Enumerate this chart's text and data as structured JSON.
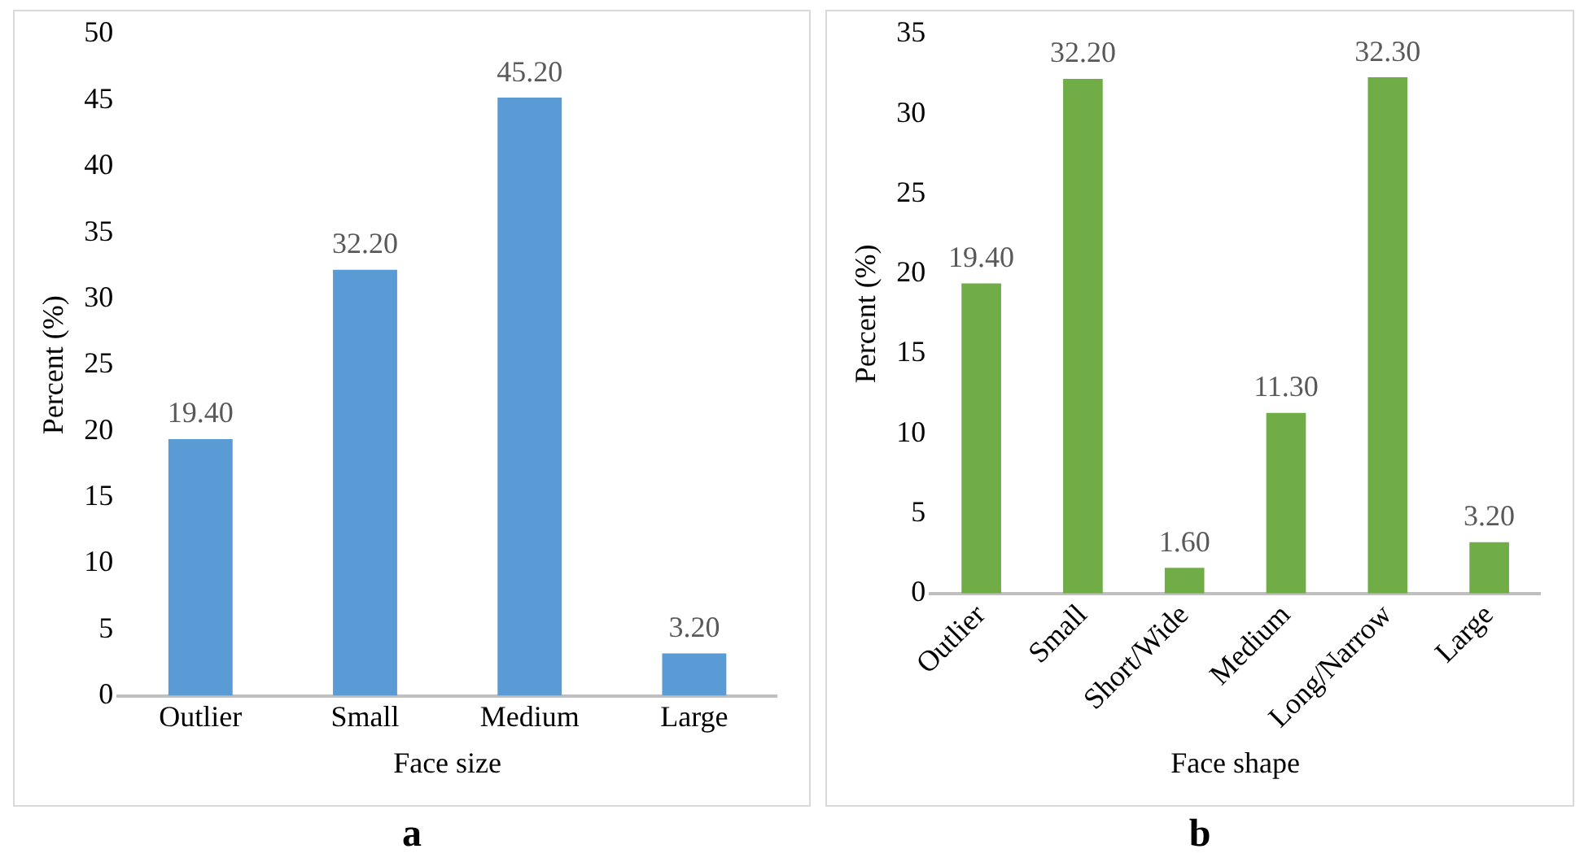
{
  "chart_data": [
    {
      "type": "bar",
      "xlabel": "Face size",
      "ylabel": "Percent (%)",
      "categories": [
        "Outlier",
        "Small",
        "Medium",
        "Large"
      ],
      "values": [
        19.4,
        32.2,
        45.2,
        3.2
      ],
      "color": "#5b9bd5",
      "value_labels": [
        "19.40",
        "32.20",
        "45.20",
        "3.20"
      ],
      "ylim": [
        0,
        50
      ],
      "yticks": [
        0,
        5,
        10,
        15,
        20,
        25,
        30,
        35,
        40,
        45,
        50
      ],
      "grid": false,
      "legend": false,
      "annotations": [
        "a"
      ]
    },
    {
      "type": "bar",
      "xlabel": "Face shape",
      "ylabel": "Percent (%)",
      "categories": [
        "Outlier",
        "Small",
        "Short/Wide",
        "Medium",
        "Long/Narrow",
        "Large"
      ],
      "values": [
        19.4,
        32.2,
        1.6,
        11.3,
        32.3,
        3.2
      ],
      "color": "#70ad47",
      "value_labels": [
        "19.40",
        "32.20",
        "1.60",
        "11.30",
        "32.30",
        "3.20"
      ],
      "ylim": [
        0,
        35
      ],
      "yticks": [
        0,
        5,
        10,
        15,
        20,
        25,
        30,
        35
      ],
      "grid": false,
      "legend": false,
      "annotations": [
        "b"
      ]
    }
  ]
}
